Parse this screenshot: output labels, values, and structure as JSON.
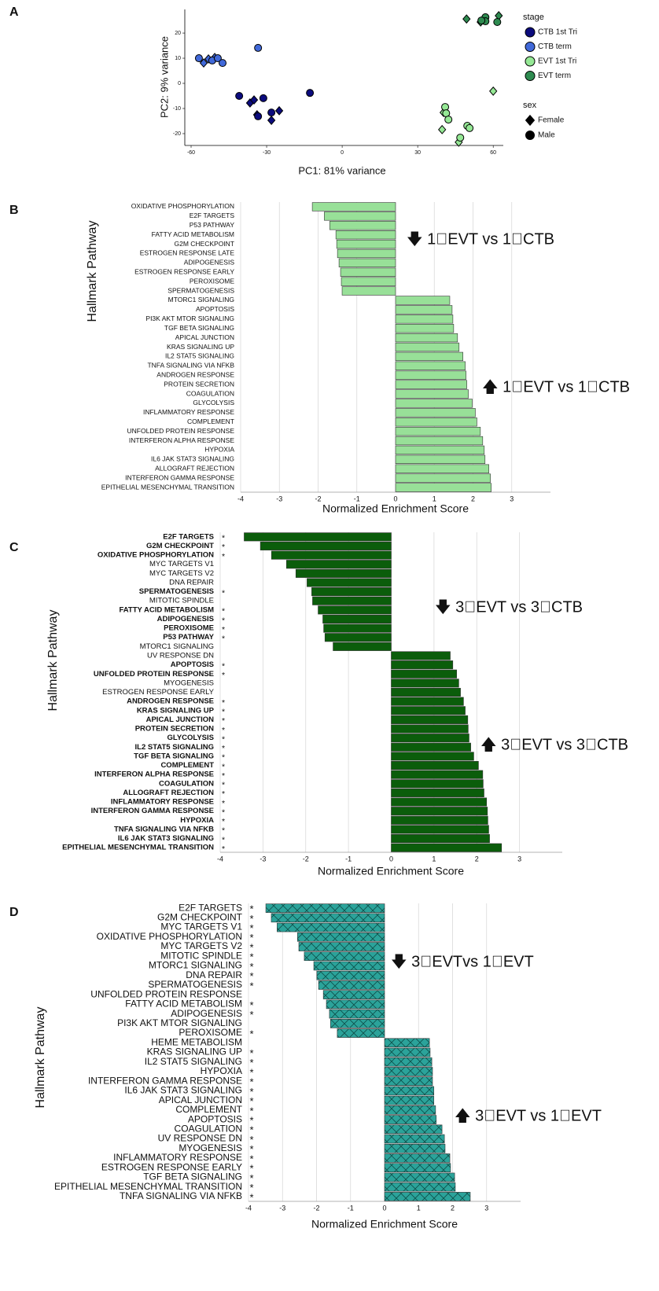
{
  "chart_data": [
    {
      "panel": "A",
      "type": "scatter",
      "xlabel": "PC1: 81% variance",
      "ylabel": "PC2: 9% variance",
      "xlim": [
        -62.5,
        64
      ],
      "ylim": [
        -24.7,
        29.4
      ],
      "xticks": [
        -60,
        -30,
        0,
        30,
        60
      ],
      "yticks": [
        -20,
        -10,
        0,
        10,
        20
      ],
      "legend_title": "stage",
      "shape_legend": {
        "title": "sex",
        "entries": [
          {
            "name": "Female",
            "marker": "diamond"
          },
          {
            "name": "Male",
            "marker": "circle"
          }
        ]
      },
      "series": [
        {
          "name": "CTB 1st Tri",
          "color": "#0b0b7d",
          "groups": [
            {
              "x": [
                -36.6,
                -35,
                -28.1,
                -25,
                -33.8
              ],
              "values": [
                -7.8,
                -6.6,
                -14.7,
                -10.9,
                -12.5
              ]
            },
            {
              "x": [
                -40.9,
                -31.3,
                -33.4,
                -28.1,
                -12.8
              ],
              "values": [
                -5,
                -5.9,
                -13.1,
                -11.6,
                -3.8
              ]
            }
          ]
        },
        {
          "name": "CTB term",
          "color": "#4169d9",
          "groups": [
            {
              "x": [
                -55,
                -53.1,
                -50.6
              ],
              "values": [
                8.1,
                9.7,
                10.3
              ]
            },
            {
              "x": [
                -56.9,
                -51.6,
                -49.4,
                -47.5,
                -33.4
              ],
              "values": [
                10,
                9.1,
                10,
                8.1,
                14.1
              ]
            }
          ]
        },
        {
          "name": "EVT 1st Tri",
          "color": "#95e895",
          "groups": [
            {
              "x": [
                40.3,
                39.7,
                46.3,
                60
              ],
              "values": [
                -11.6,
                -18.4,
                -23.4,
                -3.1
              ]
            },
            {
              "x": [
                40.9,
                41.3,
                42.2,
                49.7,
                50.6,
                46.9
              ],
              "values": [
                -9.4,
                -11.9,
                -14.4,
                -16.9,
                -17.8,
                -21.6
              ]
            }
          ]
        },
        {
          "name": "EVT term",
          "color": "#2e8b50",
          "groups": [
            {
              "x": [
                49.4,
                55,
                62.2
              ],
              "values": [
                25.6,
                24.4,
                26.9
              ]
            },
            {
              "x": [
                56.9,
                56.9,
                61.6,
                55.3
              ],
              "values": [
                26.3,
                24.7,
                24.4,
                25
              ]
            }
          ]
        }
      ]
    },
    {
      "panel": "B",
      "type": "barh",
      "xlabel": "Normalized Enrichment Score",
      "ylabel": "Hallmark Pathway",
      "xlim": [
        -4,
        4
      ],
      "xticks": [
        -4,
        -3,
        -2,
        -1,
        0,
        1,
        2,
        3
      ],
      "grid": true,
      "color": "#98e098",
      "annotations": [
        "🡇 1⃤EVT vs 1⃤CTB",
        "🡅 1⃤EVT vs 1⃤CTB"
      ],
      "categories": [
        "OXIDATIVE PHOSPHORYLATION",
        "E2F TARGETS",
        "P53 PATHWAY",
        "FATTY ACID METABOLISM",
        "G2M CHECKPOINT",
        "ESTROGEN RESPONSE LATE",
        "ADIPOGENESIS",
        "ESTROGEN RESPONSE EARLY",
        "PEROXISOME",
        "SPERMATOGENESIS",
        "MTORC1 SIGNALING",
        "APOPTOSIS",
        "PI3K AKT MTOR SIGNALING",
        "TGF BETA SIGNALING",
        "APICAL JUNCTION",
        "KRAS SIGNALING UP",
        "IL2 STAT5 SIGNALING",
        "TNFA SIGNALING VIA NFKB",
        "ANDROGEN RESPONSE",
        "PROTEIN SECRETION",
        "COAGULATION",
        "GLYCOLYSIS",
        "INFLAMMATORY RESPONSE",
        "COMPLEMENT",
        "UNFOLDED PROTEIN RESPONSE",
        "INTERFERON ALPHA RESPONSE",
        "HYPOXIA",
        "IL6 JAK STAT3 SIGNALING",
        "ALLOGRAFT REJECTION",
        "INTERFERON GAMMA RESPONSE",
        "EPITHELIAL MESENCHYMAL TRANSITION"
      ],
      "values": [
        -2.15,
        -1.84,
        -1.7,
        -1.54,
        -1.52,
        -1.5,
        -1.46,
        -1.42,
        -1.4,
        -1.38,
        1.4,
        1.46,
        1.48,
        1.5,
        1.6,
        1.64,
        1.74,
        1.8,
        1.82,
        1.84,
        1.88,
        1.98,
        2.06,
        2.1,
        2.19,
        2.25,
        2.29,
        2.31,
        2.41,
        2.45,
        2.47
      ]
    },
    {
      "panel": "C",
      "type": "barh",
      "xlabel": "Normalized Enrichment Score",
      "ylabel": "Hallmark Pathway",
      "xlim": [
        -4,
        4
      ],
      "xticks": [
        -4,
        -3,
        -2,
        -1,
        0,
        1,
        2,
        3
      ],
      "grid": true,
      "color": "#0b5d0b",
      "annotations": [
        "🡇 3⃤EVT vs 3⃤CTB",
        "🡅 3⃤EVT vs 3⃤CTB"
      ],
      "categories": [
        "E2F TARGETS",
        "G2M CHECKPOINT",
        "OXIDATIVE PHOSPHORYLATION",
        "MYC TARGETS V1",
        "MYC TARGETS V2",
        "DNA REPAIR",
        "SPERMATOGENESIS",
        "MITOTIC SPINDLE",
        "FATTY ACID METABOLISM",
        "ADIPOGENESIS",
        "PEROXISOME",
        "P53 PATHWAY",
        "MTORC1 SIGNALING",
        "UV RESPONSE DN",
        "APOPTOSIS",
        "UNFOLDED PROTEIN RESPONSE",
        "MYOGENESIS",
        "ESTROGEN RESPONSE EARLY",
        "ANDROGEN RESPONSE",
        "KRAS SIGNALING UP",
        "APICAL JUNCTION",
        "PROTEIN SECRETION",
        "GLYCOLYSIS",
        "IL2 STAT5 SIGNALING",
        "TGF BETA SIGNALING",
        "COMPLEMENT",
        "INTERFERON ALPHA RESPONSE",
        "COAGULATION",
        "ALLOGRAFT REJECTION",
        "INFLAMMATORY RESPONSE",
        "INTERFERON GAMMA RESPONSE",
        "HYPOXIA",
        "TNFA SIGNALING VIA NFKB",
        "IL6 JAK STAT3 SIGNALING",
        "EPITHELIAL MESENCHYMAL TRANSITION"
      ],
      "values": [
        -3.44,
        -3.06,
        -2.8,
        -2.45,
        -2.23,
        -1.97,
        -1.86,
        -1.84,
        -1.71,
        -1.6,
        -1.58,
        -1.55,
        -1.36,
        1.38,
        1.44,
        1.53,
        1.58,
        1.62,
        1.69,
        1.73,
        1.79,
        1.8,
        1.82,
        1.86,
        1.93,
        2.04,
        2.14,
        2.15,
        2.17,
        2.23,
        2.25,
        2.26,
        2.28,
        2.3,
        2.58
      ],
      "marks": [
        "*",
        "*",
        "*",
        null,
        null,
        null,
        "*",
        null,
        "*",
        "*",
        "*",
        "*",
        null,
        null,
        "*",
        "*",
        null,
        null,
        "*",
        "*",
        "*",
        "*",
        "*",
        "*",
        "*",
        "*",
        "*",
        "*",
        "*",
        "*",
        "*",
        "*",
        "*",
        "*",
        "*"
      ]
    },
    {
      "panel": "D",
      "type": "barh",
      "xlabel": "Normalized Enrichment Score",
      "ylabel": "Hallmark Pathway",
      "xlim": [
        -4,
        4
      ],
      "xticks": [
        -4,
        -3,
        -2,
        -1,
        0,
        1,
        2,
        3
      ],
      "grid": true,
      "color": "#2ba39a",
      "hatch": "x",
      "annotations": [
        "🡇 3⃤EVTvs 1⃤EVT",
        "🡅 3⃤EVT vs 1⃤EVT"
      ],
      "categories": [
        "E2F TARGETS",
        "G2M CHECKPOINT",
        "MYC TARGETS V1",
        "OXIDATIVE PHOSPHORYLATION",
        "MYC TARGETS V2",
        "MITOTIC SPINDLE",
        "MTORC1 SIGNALING",
        "DNA REPAIR",
        "SPERMATOGENESIS",
        "UNFOLDED PROTEIN RESPONSE",
        "FATTY ACID METABOLISM",
        "ADIPOGENESIS",
        "PI3K AKT MTOR SIGNALING",
        "PEROXISOME",
        "HEME METABOLISM",
        "KRAS SIGNALING UP",
        "IL2 STAT5 SIGNALING",
        "HYPOXIA",
        "INTERFERON GAMMA RESPONSE",
        "IL6 JAK STAT3 SIGNALING",
        "APICAL JUNCTION",
        "COMPLEMENT",
        "APOPTOSIS",
        "COAGULATION",
        "UV RESPONSE DN",
        "MYOGENESIS",
        "INFLAMMATORY RESPONSE",
        "ESTROGEN RESPONSE EARLY",
        "TGF BETA SIGNALING",
        "EPITHELIAL MESENCHYMAL TRANSITION",
        "TNFA SIGNALING VIA NFKB"
      ],
      "values": [
        -3.49,
        -3.33,
        -3.16,
        -2.56,
        -2.52,
        -2.36,
        -2.08,
        -1.99,
        -1.94,
        -1.8,
        -1.71,
        -1.62,
        -1.59,
        -1.39,
        1.32,
        1.34,
        1.39,
        1.41,
        1.41,
        1.45,
        1.45,
        1.5,
        1.52,
        1.69,
        1.76,
        1.78,
        1.92,
        1.94,
        2.06,
        2.08,
        2.52
      ],
      "marks": [
        "*",
        "*",
        "*",
        "*",
        "*",
        "*",
        "*",
        "*",
        "*",
        null,
        "*",
        "*",
        null,
        "*",
        null,
        "*",
        "*",
        "*",
        "*",
        "*",
        "*",
        "*",
        "*",
        "*",
        "*",
        "*",
        "*",
        "*",
        "*",
        "*",
        "*"
      ]
    }
  ]
}
